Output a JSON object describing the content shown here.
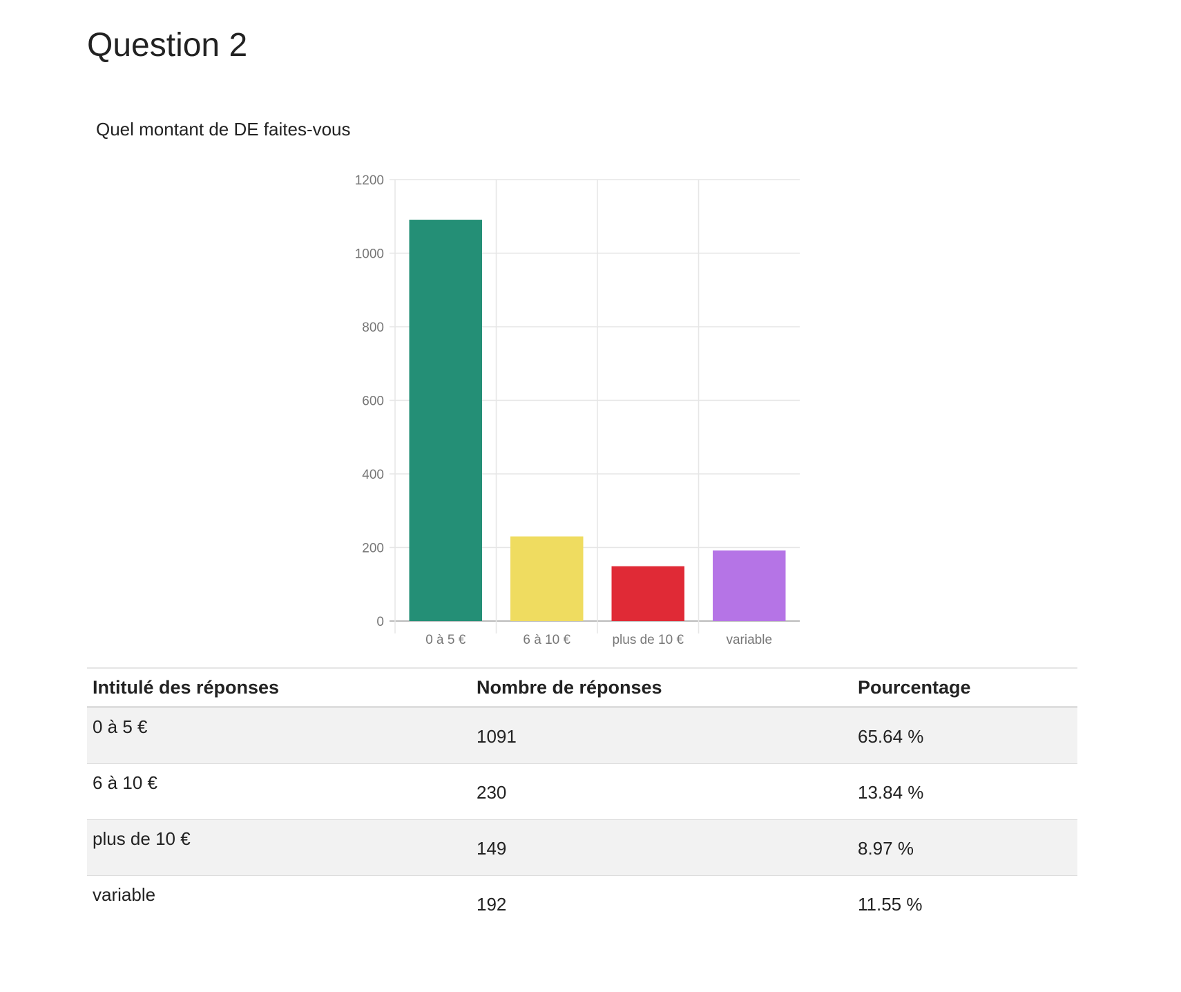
{
  "page": {
    "title": "Question 2",
    "question": "Quel montant de DE faites-vous"
  },
  "chart_data": {
    "type": "bar",
    "title": "",
    "xlabel": "",
    "ylabel": "",
    "categories": [
      "0 à 5 €",
      "6 à 10 €",
      "plus de 10 €",
      "variable"
    ],
    "values": [
      1091,
      230,
      149,
      192
    ],
    "colors": [
      "#248f76",
      "#efdc60",
      "#e02a36",
      "#b574e6"
    ],
    "ylim": [
      0,
      1200
    ],
    "yticks": [
      0,
      200,
      400,
      600,
      800,
      1000,
      1200
    ],
    "ytick_labels": [
      "0",
      "200",
      "400",
      "600",
      "800",
      "1000",
      "1200"
    ],
    "grid": true,
    "legend": "none"
  },
  "table": {
    "headers": [
      "Intitulé des réponses",
      "Nombre de réponses",
      "Pourcentage"
    ],
    "rows": [
      {
        "label": "0 à 5 €",
        "count": "1091",
        "percent": "65.64 %"
      },
      {
        "label": "6 à 10 €",
        "count": "230",
        "percent": "13.84 %"
      },
      {
        "label": "plus de 10 €",
        "count": "149",
        "percent": "8.97 %"
      },
      {
        "label": "variable",
        "count": "192",
        "percent": "11.55 %"
      }
    ]
  },
  "colors": {
    "grid": "#e6e6e6",
    "axis": "#bbbbbb",
    "tick_text": "#777777",
    "row_alt": "#f2f2f2"
  }
}
